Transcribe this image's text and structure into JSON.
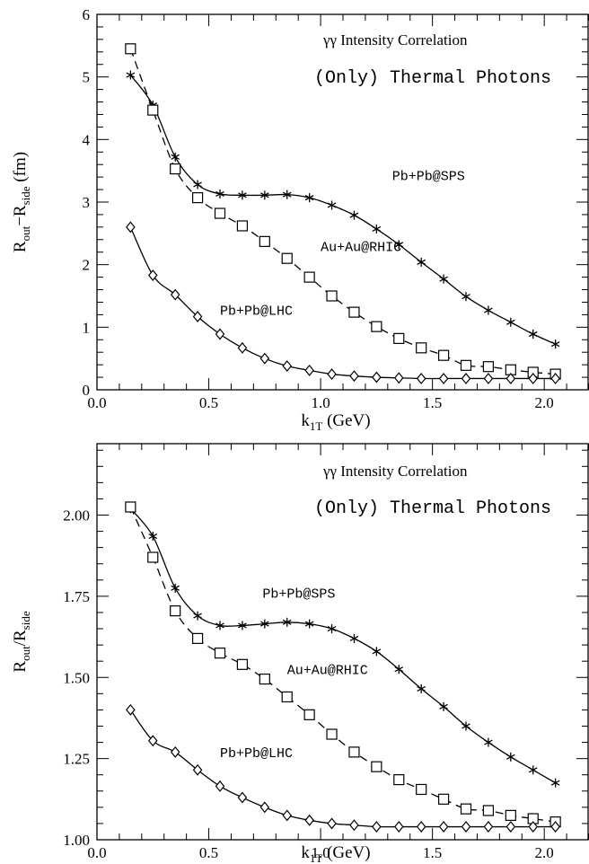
{
  "chart_data": [
    {
      "type": "line",
      "title": "γγ Intensity Correlation",
      "subtitle": "(Only) Thermal Photons",
      "xlabel_main": "k",
      "xlabel_sub": "1T",
      "xlabel_unit": "(GeV)",
      "ylabel_main": "R",
      "ylabel_sub1": "out",
      "ylabel_op": "−R",
      "ylabel_sub2": "side",
      "ylabel_unit": "(fm)",
      "xlim": [
        0.0,
        2.2
      ],
      "ylim": [
        0,
        6
      ],
      "x_ticks": [
        0.0,
        0.5,
        1.0,
        1.5,
        2.0
      ],
      "x_tick_labels": [
        "0.0",
        "0.5",
        "1.0",
        "1.5",
        "2.0"
      ],
      "y_ticks": [
        0,
        1,
        2,
        3,
        4,
        5,
        6
      ],
      "y_tick_labels": [
        "0",
        "1",
        "2",
        "3",
        "4",
        "5",
        "6"
      ],
      "series": [
        {
          "name": "Pb+Pb@SPS",
          "marker": "star",
          "line": "solid",
          "label_x": 1.32,
          "label_y": 3.35,
          "x": [
            0.15,
            0.25,
            0.35,
            0.45,
            0.55,
            0.65,
            0.75,
            0.85,
            0.95,
            1.05,
            1.15,
            1.25,
            1.35,
            1.45,
            1.55,
            1.65,
            1.75,
            1.85,
            1.95,
            2.05
          ],
          "y": [
            5.03,
            4.55,
            3.72,
            3.28,
            3.13,
            3.11,
            3.11,
            3.12,
            3.07,
            2.95,
            2.79,
            2.57,
            2.32,
            2.04,
            1.77,
            1.49,
            1.27,
            1.08,
            0.89,
            0.73
          ]
        },
        {
          "name": "Au+Au@RHIC",
          "marker": "square",
          "line": "dashed",
          "label_x": 1.0,
          "label_y": 2.22,
          "x": [
            0.15,
            0.25,
            0.35,
            0.45,
            0.55,
            0.65,
            0.75,
            0.85,
            0.95,
            1.05,
            1.15,
            1.25,
            1.35,
            1.45,
            1.55,
            1.65,
            1.75,
            1.85,
            1.95,
            2.05
          ],
          "y": [
            5.45,
            4.47,
            3.53,
            3.07,
            2.82,
            2.62,
            2.37,
            2.1,
            1.8,
            1.5,
            1.24,
            1.01,
            0.82,
            0.67,
            0.55,
            0.39,
            0.37,
            0.32,
            0.28,
            0.25
          ]
        },
        {
          "name": "Pb+Pb@LHC",
          "marker": "diamond",
          "line": "solid",
          "label_x": 0.55,
          "label_y": 1.2,
          "x": [
            0.15,
            0.25,
            0.35,
            0.45,
            0.55,
            0.65,
            0.75,
            0.85,
            0.95,
            1.05,
            1.15,
            1.25,
            1.35,
            1.45,
            1.55,
            1.65,
            1.75,
            1.85,
            1.95,
            2.05
          ],
          "y": [
            2.6,
            1.83,
            1.52,
            1.17,
            0.89,
            0.67,
            0.5,
            0.38,
            0.31,
            0.25,
            0.22,
            0.2,
            0.19,
            0.18,
            0.18,
            0.18,
            0.18,
            0.18,
            0.18,
            0.18
          ]
        }
      ]
    },
    {
      "type": "line",
      "title": "γγ Intensity Correlation",
      "subtitle": "(Only) Thermal Photons",
      "xlabel_main": "k",
      "xlabel_sub": "1T",
      "xlabel_unit": "(GeV)",
      "ylabel_main": "R",
      "ylabel_sub1": "out",
      "ylabel_op": "/R",
      "ylabel_sub2": "side",
      "ylabel_unit": "",
      "xlim": [
        0.0,
        2.2
      ],
      "ylim": [
        1.0,
        2.22
      ],
      "x_ticks": [
        0.0,
        0.5,
        1.0,
        1.5,
        2.0
      ],
      "x_tick_labels": [
        "0.0",
        "0.5",
        "1.0",
        "1.5",
        "2.0"
      ],
      "y_ticks": [
        1.0,
        1.25,
        1.5,
        1.75,
        2.0
      ],
      "y_tick_labels": [
        "1.00",
        "1.25",
        "1.50",
        "1.75",
        "2.00"
      ],
      "series": [
        {
          "name": "Pb+Pb@SPS",
          "marker": "star",
          "line": "solid",
          "label_x": 0.74,
          "label_y": 1.745,
          "x": [
            0.15,
            0.25,
            0.35,
            0.45,
            0.55,
            0.65,
            0.75,
            0.85,
            0.95,
            1.05,
            1.15,
            1.25,
            1.35,
            1.45,
            1.55,
            1.65,
            1.75,
            1.85,
            1.95,
            2.05
          ],
          "y": [
            2.02,
            1.935,
            1.775,
            1.69,
            1.66,
            1.66,
            1.665,
            1.67,
            1.665,
            1.65,
            1.62,
            1.58,
            1.525,
            1.465,
            1.41,
            1.35,
            1.3,
            1.255,
            1.215,
            1.175
          ]
        },
        {
          "name": "Au+Au@RHIC",
          "marker": "square",
          "line": "dashed",
          "label_x": 0.85,
          "label_y": 1.51,
          "x": [
            0.15,
            0.25,
            0.35,
            0.45,
            0.55,
            0.65,
            0.75,
            0.85,
            0.95,
            1.05,
            1.15,
            1.25,
            1.35,
            1.45,
            1.55,
            1.65,
            1.75,
            1.85,
            1.95,
            2.05
          ],
          "y": [
            2.025,
            1.87,
            1.705,
            1.62,
            1.575,
            1.54,
            1.495,
            1.44,
            1.385,
            1.325,
            1.27,
            1.225,
            1.185,
            1.155,
            1.125,
            1.095,
            1.09,
            1.075,
            1.065,
            1.055
          ]
        },
        {
          "name": "Pb+Pb@LHC",
          "marker": "diamond",
          "line": "solid",
          "label_x": 0.55,
          "label_y": 1.255,
          "x": [
            0.15,
            0.25,
            0.35,
            0.45,
            0.55,
            0.65,
            0.75,
            0.85,
            0.95,
            1.05,
            1.15,
            1.25,
            1.35,
            1.45,
            1.55,
            1.65,
            1.75,
            1.85,
            1.95,
            2.05
          ],
          "y": [
            1.4,
            1.305,
            1.27,
            1.215,
            1.165,
            1.13,
            1.1,
            1.075,
            1.06,
            1.05,
            1.045,
            1.04,
            1.04,
            1.04,
            1.04,
            1.04,
            1.04,
            1.04,
            1.04,
            1.04
          ]
        }
      ]
    }
  ]
}
